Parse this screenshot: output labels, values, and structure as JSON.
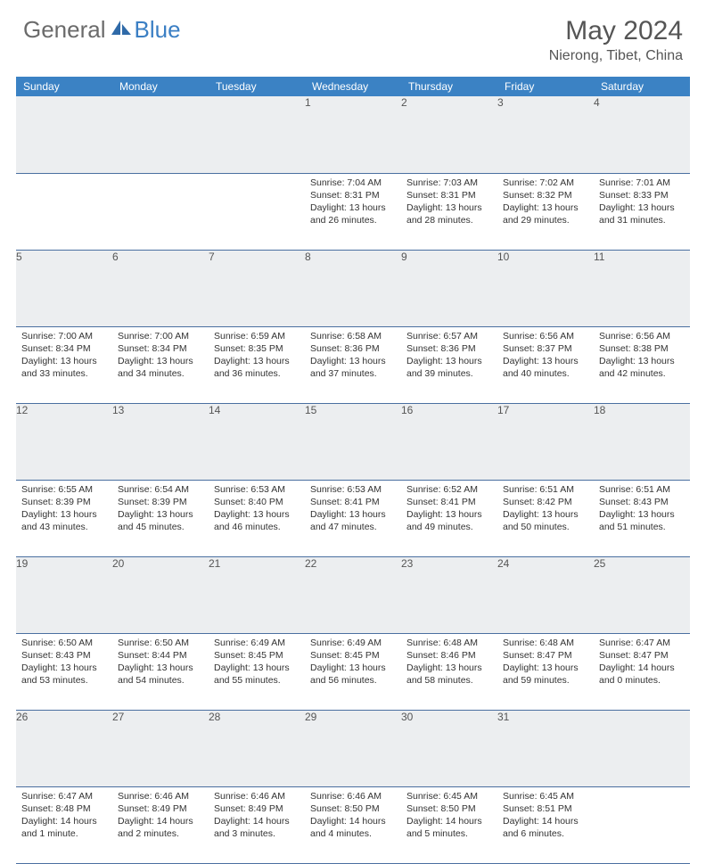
{
  "logo": {
    "general": "General",
    "blue": "Blue"
  },
  "title": "May 2024",
  "location": "Nierong, Tibet, China",
  "colors": {
    "header_bg": "#3b82c4",
    "daynum_bg": "#eceef0",
    "border": "#4a6fa0",
    "text": "#333333",
    "title_text": "#555555"
  },
  "weekdays": [
    "Sunday",
    "Monday",
    "Tuesday",
    "Wednesday",
    "Thursday",
    "Friday",
    "Saturday"
  ],
  "weeks": [
    [
      null,
      null,
      null,
      {
        "n": "1",
        "sr": "7:04 AM",
        "ss": "8:31 PM",
        "dl": "13 hours and 26 minutes."
      },
      {
        "n": "2",
        "sr": "7:03 AM",
        "ss": "8:31 PM",
        "dl": "13 hours and 28 minutes."
      },
      {
        "n": "3",
        "sr": "7:02 AM",
        "ss": "8:32 PM",
        "dl": "13 hours and 29 minutes."
      },
      {
        "n": "4",
        "sr": "7:01 AM",
        "ss": "8:33 PM",
        "dl": "13 hours and 31 minutes."
      }
    ],
    [
      {
        "n": "5",
        "sr": "7:00 AM",
        "ss": "8:34 PM",
        "dl": "13 hours and 33 minutes."
      },
      {
        "n": "6",
        "sr": "7:00 AM",
        "ss": "8:34 PM",
        "dl": "13 hours and 34 minutes."
      },
      {
        "n": "7",
        "sr": "6:59 AM",
        "ss": "8:35 PM",
        "dl": "13 hours and 36 minutes."
      },
      {
        "n": "8",
        "sr": "6:58 AM",
        "ss": "8:36 PM",
        "dl": "13 hours and 37 minutes."
      },
      {
        "n": "9",
        "sr": "6:57 AM",
        "ss": "8:36 PM",
        "dl": "13 hours and 39 minutes."
      },
      {
        "n": "10",
        "sr": "6:56 AM",
        "ss": "8:37 PM",
        "dl": "13 hours and 40 minutes."
      },
      {
        "n": "11",
        "sr": "6:56 AM",
        "ss": "8:38 PM",
        "dl": "13 hours and 42 minutes."
      }
    ],
    [
      {
        "n": "12",
        "sr": "6:55 AM",
        "ss": "8:39 PM",
        "dl": "13 hours and 43 minutes."
      },
      {
        "n": "13",
        "sr": "6:54 AM",
        "ss": "8:39 PM",
        "dl": "13 hours and 45 minutes."
      },
      {
        "n": "14",
        "sr": "6:53 AM",
        "ss": "8:40 PM",
        "dl": "13 hours and 46 minutes."
      },
      {
        "n": "15",
        "sr": "6:53 AM",
        "ss": "8:41 PM",
        "dl": "13 hours and 47 minutes."
      },
      {
        "n": "16",
        "sr": "6:52 AM",
        "ss": "8:41 PM",
        "dl": "13 hours and 49 minutes."
      },
      {
        "n": "17",
        "sr": "6:51 AM",
        "ss": "8:42 PM",
        "dl": "13 hours and 50 minutes."
      },
      {
        "n": "18",
        "sr": "6:51 AM",
        "ss": "8:43 PM",
        "dl": "13 hours and 51 minutes."
      }
    ],
    [
      {
        "n": "19",
        "sr": "6:50 AM",
        "ss": "8:43 PM",
        "dl": "13 hours and 53 minutes."
      },
      {
        "n": "20",
        "sr": "6:50 AM",
        "ss": "8:44 PM",
        "dl": "13 hours and 54 minutes."
      },
      {
        "n": "21",
        "sr": "6:49 AM",
        "ss": "8:45 PM",
        "dl": "13 hours and 55 minutes."
      },
      {
        "n": "22",
        "sr": "6:49 AM",
        "ss": "8:45 PM",
        "dl": "13 hours and 56 minutes."
      },
      {
        "n": "23",
        "sr": "6:48 AM",
        "ss": "8:46 PM",
        "dl": "13 hours and 58 minutes."
      },
      {
        "n": "24",
        "sr": "6:48 AM",
        "ss": "8:47 PM",
        "dl": "13 hours and 59 minutes."
      },
      {
        "n": "25",
        "sr": "6:47 AM",
        "ss": "8:47 PM",
        "dl": "14 hours and 0 minutes."
      }
    ],
    [
      {
        "n": "26",
        "sr": "6:47 AM",
        "ss": "8:48 PM",
        "dl": "14 hours and 1 minute."
      },
      {
        "n": "27",
        "sr": "6:46 AM",
        "ss": "8:49 PM",
        "dl": "14 hours and 2 minutes."
      },
      {
        "n": "28",
        "sr": "6:46 AM",
        "ss": "8:49 PM",
        "dl": "14 hours and 3 minutes."
      },
      {
        "n": "29",
        "sr": "6:46 AM",
        "ss": "8:50 PM",
        "dl": "14 hours and 4 minutes."
      },
      {
        "n": "30",
        "sr": "6:45 AM",
        "ss": "8:50 PM",
        "dl": "14 hours and 5 minutes."
      },
      {
        "n": "31",
        "sr": "6:45 AM",
        "ss": "8:51 PM",
        "dl": "14 hours and 6 minutes."
      },
      null
    ]
  ],
  "labels": {
    "sunrise": "Sunrise:",
    "sunset": "Sunset:",
    "daylight": "Daylight:"
  }
}
